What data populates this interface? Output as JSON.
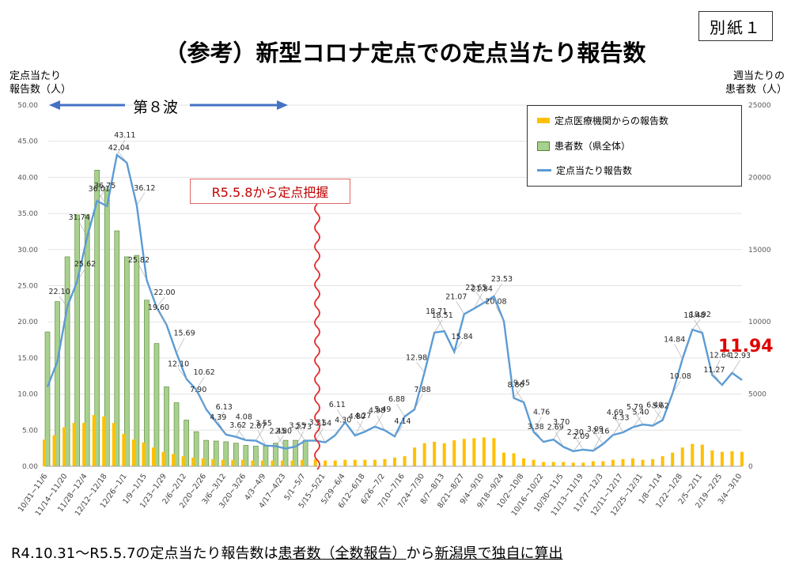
{
  "attachment": "別紙１",
  "title": "（参考）新型コロナ定点での定点当たり報告数",
  "y_left_label": [
    "定点当たり",
    "報告数（人）"
  ],
  "y_right_label": [
    "週当たりの",
    "患者数（人）"
  ],
  "wave_label": "第８波",
  "callout": "R5.5.8から定点把握",
  "highlight_value": "11.94",
  "legend": {
    "bar_yellow": "定点医療機関からの報告数",
    "bar_green": "患者数（県全体）",
    "line": "定点当たり報告数"
  },
  "footnote": {
    "prefix": "R4.10.31〜R5.5.7の定点当たり報告数は",
    "underline1": "患者数（全数報告）",
    "middle": "から",
    "underline2": "新潟県で独自に算出"
  },
  "colors": {
    "line": "#5B9BD5",
    "green": "#A9D18E",
    "green_border": "#548235",
    "yellow": "#FFC000",
    "arrow": "#4472C4",
    "red": "#E00000"
  },
  "chart_data": {
    "type": "bar+line",
    "x_tick_labels": [
      "10/31~11/6",
      "11/14~11/20",
      "11/28~12/4",
      "12/12~12/18",
      "12/26~1/1",
      "1/9~1/15",
      "1/23~1/29",
      "2/6~2/12",
      "2/20~2/26",
      "3/6~3/12",
      "3/20~3/26",
      "4/3~4/9",
      "4/17~4/23",
      "5/1~5/7",
      "5/15~5/21",
      "5/29~6/4",
      "6/12~6/18",
      "6/26~7/2",
      "7/10~7/16",
      "7/24~7/30",
      "8/7~8/13",
      "8/21~8/27",
      "9/4~9/10",
      "9/18~9/24",
      "10/2~10/8",
      "10/16~10/22",
      "10/30~11/5",
      "11/13~11/19",
      "11/27~12/3",
      "12/11~12/17",
      "12/25~12/31",
      "1/8~1/14",
      "1/22~1/28",
      "2/5~2/11",
      "2/19~2/25",
      "3/4~3/10"
    ],
    "y_left_ticks": [
      "0.00",
      "5.00",
      "10.00",
      "15.00",
      "20.00",
      "25.00",
      "30.00",
      "35.00",
      "40.00",
      "45.00",
      "50.00"
    ],
    "y_right_ticks": [
      "0",
      "5000",
      "10000",
      "15000",
      "20000",
      "25000"
    ],
    "ylim_left": [
      0,
      50
    ],
    "ylim_right": [
      0,
      25000
    ],
    "series": [
      {
        "name": "定点当たり報告数",
        "axis": "left",
        "kind": "line",
        "values": [
          11.0,
          14.5,
          22.1,
          25.62,
          31.74,
          36.75,
          36.01,
          43.11,
          42.04,
          36.12,
          25.82,
          22.0,
          19.6,
          15.69,
          12.1,
          10.62,
          7.9,
          6.13,
          4.39,
          4.08,
          3.62,
          3.55,
          2.87,
          2.8,
          2.45,
          2.73,
          3.55,
          3.54,
          3.31,
          4.3,
          6.11,
          4.27,
          4.8,
          5.49,
          4.98,
          4.14,
          6.88,
          7.88,
          12.98,
          18.51,
          18.71,
          15.84,
          21.07,
          21.84,
          22.65,
          23.53,
          20.08,
          9.45,
          8.86,
          4.76,
          3.38,
          3.7,
          2.69,
          2.09,
          2.3,
          2.16,
          3.09,
          4.33,
          4.69,
          5.4,
          5.79,
          5.62,
          6.4,
          10.08,
          14.84,
          18.92,
          18.48,
          12.64,
          11.27,
          12.93,
          11.94
        ]
      },
      {
        "name": "患者数（県全体）",
        "axis": "right",
        "kind": "bar",
        "values": [
          9300,
          11400,
          14500,
          17400,
          17400,
          20500,
          19200,
          16300,
          14500,
          14600,
          11500,
          8500,
          5500,
          4400,
          3200,
          2400,
          1800,
          1750,
          1700,
          1600,
          1450,
          1400,
          1400,
          1600,
          1800,
          1800,
          1800
        ]
      },
      {
        "name": "定点医療機関からの報告数",
        "axis": "right",
        "kind": "bar",
        "values": [
          1850,
          2150,
          2700,
          3000,
          3000,
          3550,
          3450,
          3000,
          2250,
          1850,
          1650,
          1300,
          1000,
          850,
          700,
          600,
          550,
          500,
          450,
          450,
          450,
          400,
          400,
          400,
          400,
          400,
          450,
          500,
          400,
          400,
          450,
          450,
          450,
          450,
          500,
          600,
          700,
          1300,
          1600,
          1700,
          1600,
          1800,
          1900,
          1950,
          2000,
          1950,
          950,
          900,
          550,
          450,
          300,
          300,
          300,
          250,
          250,
          350,
          350,
          450,
          500,
          550,
          450,
          500,
          700,
          950,
          1300,
          1550,
          1500,
          1100,
          1000,
          1050,
          1000
        ]
      }
    ],
    "data_labels": [
      {
        "i": 2,
        "t": "22.10"
      },
      {
        "i": 3,
        "t": "25.62"
      },
      {
        "i": 4,
        "t": "31.74"
      },
      {
        "i": 5,
        "t": "36.75"
      },
      {
        "i": 6,
        "t": "36.01"
      },
      {
        "i": 7,
        "t": "43.11"
      },
      {
        "i": 8,
        "t": "42.04"
      },
      {
        "i": 9,
        "t": "36.12"
      },
      {
        "i": 10,
        "t": "25.82"
      },
      {
        "i": 11,
        "t": "22.00"
      },
      {
        "i": 12,
        "t": "19.60"
      },
      {
        "i": 13,
        "t": "15.69"
      },
      {
        "i": 14,
        "t": "12.10"
      },
      {
        "i": 15,
        "t": "10.62"
      },
      {
        "i": 16,
        "t": "7.90"
      },
      {
        "i": 17,
        "t": "6.13"
      },
      {
        "i": 18,
        "t": "4.39"
      },
      {
        "i": 19,
        "t": "4.08"
      },
      {
        "i": 20,
        "t": "3.62"
      },
      {
        "i": 21,
        "t": "3.55"
      },
      {
        "i": 22,
        "t": "2.87"
      },
      {
        "i": 23,
        "t": "2.80"
      },
      {
        "i": 24,
        "t": "2.45"
      },
      {
        "i": 25,
        "t": "2.73"
      },
      {
        "i": 26,
        "t": "3.55"
      },
      {
        "i": 27,
        "t": "3.54"
      },
      {
        "i": 28,
        "t": "3.31"
      },
      {
        "i": 29,
        "t": "4.30"
      },
      {
        "i": 30,
        "t": "6.11"
      },
      {
        "i": 31,
        "t": "4.27"
      },
      {
        "i": 32,
        "t": "4.80"
      },
      {
        "i": 33,
        "t": "5.49"
      },
      {
        "i": 34,
        "t": "4.98"
      },
      {
        "i": 35,
        "t": "4.14"
      },
      {
        "i": 36,
        "t": "6.88"
      },
      {
        "i": 37,
        "t": "7.88"
      },
      {
        "i": 38,
        "t": "12.98"
      },
      {
        "i": 39,
        "t": "18.51"
      },
      {
        "i": 40,
        "t": "18.71"
      },
      {
        "i": 41,
        "t": "15.84"
      },
      {
        "i": 42,
        "t": "21.07"
      },
      {
        "i": 43,
        "t": "21.84"
      },
      {
        "i": 44,
        "t": "22.65"
      },
      {
        "i": 45,
        "t": "23.53"
      },
      {
        "i": 46,
        "t": "20.08"
      },
      {
        "i": 47,
        "t": "9.45"
      },
      {
        "i": 48,
        "t": "8.86"
      },
      {
        "i": 49,
        "t": "4.76"
      },
      {
        "i": 50,
        "t": "3.38"
      },
      {
        "i": 51,
        "t": "3.70"
      },
      {
        "i": 52,
        "t": "2.69"
      },
      {
        "i": 53,
        "t": "2.09"
      },
      {
        "i": 54,
        "t": "2.30"
      },
      {
        "i": 55,
        "t": "2.16"
      },
      {
        "i": 56,
        "t": "3.09"
      },
      {
        "i": 57,
        "t": "4.33"
      },
      {
        "i": 58,
        "t": "4.69"
      },
      {
        "i": 59,
        "t": "5.40"
      },
      {
        "i": 60,
        "t": "5.79"
      },
      {
        "i": 61,
        "t": "5.62"
      },
      {
        "i": 62,
        "t": "6.40"
      },
      {
        "i": 63,
        "t": "10.08"
      },
      {
        "i": 64,
        "t": "14.84"
      },
      {
        "i": 65,
        "t": "18.92"
      },
      {
        "i": 66,
        "t": "18.48"
      },
      {
        "i": 67,
        "t": "12.64"
      },
      {
        "i": 68,
        "t": "11.27"
      },
      {
        "i": 69,
        "t": "12.93"
      }
    ],
    "grid": true,
    "legend_position": "top-right"
  }
}
